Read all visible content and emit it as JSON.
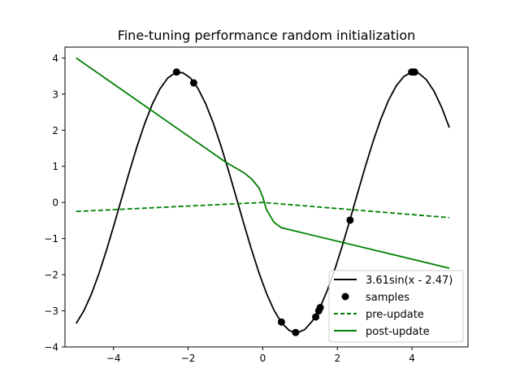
{
  "chart_data": {
    "type": "line",
    "title": "Fine-tuning performance random initialization",
    "xlabel": "",
    "ylabel": "",
    "xlim": [
      -5.3,
      5.5
    ],
    "ylim": [
      -4.0,
      4.3
    ],
    "xticks": [
      -4,
      -2,
      0,
      2,
      4
    ],
    "yticks": [
      -4,
      -3,
      -2,
      -1,
      0,
      1,
      2,
      3,
      4
    ],
    "xtick_labels": [
      "−4",
      "−2",
      "0",
      "2",
      "4"
    ],
    "ytick_labels": [
      "−4",
      "−3",
      "−2",
      "−1",
      "0",
      "1",
      "2",
      "3",
      "4"
    ],
    "grid": false,
    "legend_position": "lower-right",
    "true_function": {
      "name": "3.61sin(x - 2.47)",
      "amplitude": 3.61,
      "phase": 2.47,
      "x_range": [
        -5,
        5
      ],
      "color": "#000000",
      "style": "solid"
    },
    "samples": {
      "name": "samples",
      "color": "#000000",
      "x": [
        -2.31,
        -1.85,
        0.5,
        0.88,
        1.42,
        1.5,
        1.54,
        2.34,
        3.99,
        4.07
      ],
      "y": [
        3.61,
        3.31,
        -3.31,
        -3.6,
        -3.17,
        -3.0,
        -2.91,
        -0.49,
        3.61,
        3.61
      ]
    },
    "pre_update": {
      "name": "pre-update",
      "color": "#008000",
      "style": "dashed",
      "x": [
        -5.0,
        0.0,
        5.0
      ],
      "y": [
        -0.25,
        0.0,
        -0.42
      ]
    },
    "post_update": {
      "name": "post-update",
      "color": "#008000",
      "style": "solid",
      "x": [
        -5.0,
        -1.0,
        -0.5,
        -0.3,
        -0.1,
        0.0,
        0.1,
        0.3,
        0.5,
        5.0
      ],
      "y": [
        4.0,
        1.12,
        0.82,
        0.65,
        0.4,
        0.15,
        -0.2,
        -0.55,
        -0.7,
        -1.82
      ]
    }
  }
}
